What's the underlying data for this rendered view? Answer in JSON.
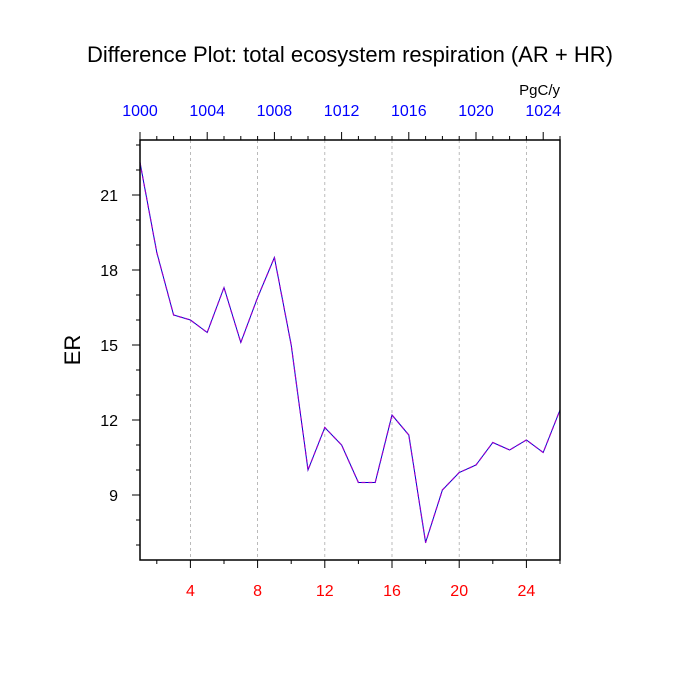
{
  "chart_data": {
    "type": "line",
    "title": "Difference Plot: total ecosystem respiration (AR + HR)",
    "ylabel": "ER",
    "units": "PgC/y",
    "x": [
      1,
      2,
      3,
      4,
      5,
      6,
      7,
      8,
      9,
      10,
      11,
      12,
      13,
      14,
      15,
      16,
      17,
      18,
      19,
      20,
      21,
      22,
      23,
      24,
      25,
      26
    ],
    "series": [
      {
        "values": [
          22.3,
          18.7,
          16.2,
          16.0,
          15.5,
          17.3,
          15.1,
          16.9,
          18.5,
          15.0,
          10.0,
          11.7,
          11.0,
          9.5,
          9.5,
          12.2,
          11.4,
          7.1,
          9.2,
          9.9,
          10.2,
          11.1,
          10.8,
          11.2,
          10.7,
          12.4
        ]
      }
    ],
    "xlim": [
      1,
      26
    ],
    "ylim": [
      6.4,
      23.2
    ],
    "bottom_axis": {
      "ticks": [
        4,
        8,
        12,
        16,
        20,
        24
      ],
      "labels": [
        "4",
        "8",
        "12",
        "16",
        "20",
        "24"
      ],
      "color": "#ff0000"
    },
    "top_axis": {
      "ticks": [
        1,
        5,
        9,
        13,
        17,
        21,
        25
      ],
      "labels": [
        "1000",
        "1004",
        "1008",
        "1012",
        "1016",
        "1020",
        "1024"
      ],
      "color": "#0000ff"
    },
    "left_axis": {
      "ticks": [
        9,
        12,
        15,
        18,
        21
      ],
      "labels": [
        "9",
        "12",
        "15",
        "18",
        "21"
      ]
    },
    "grid": "vertical-dashed",
    "line_colors": {
      "dash": "#9900cc",
      "base": "#0000cc"
    }
  }
}
